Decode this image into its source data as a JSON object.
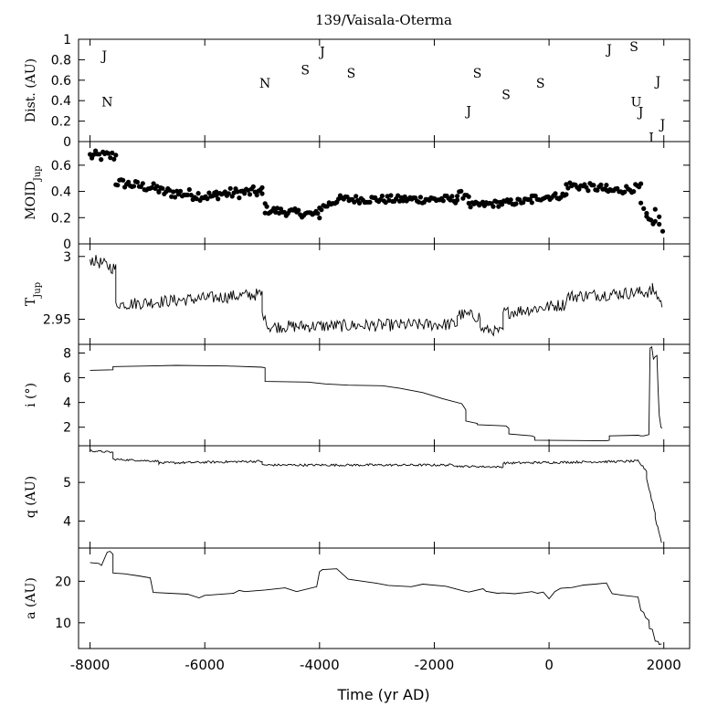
{
  "chart_data": {
    "type": "line",
    "title": "139/Vaisala-Oterma",
    "xlabel": "Time (yr AD)",
    "xlim": [
      -8200,
      2450
    ],
    "x_ticks": [
      -8000,
      -6000,
      -4000,
      -2000,
      0,
      2000
    ],
    "x_tick_labels": [
      "-8000",
      "-6000",
      "-4000",
      "-2000",
      "0",
      "2000"
    ],
    "panels": [
      {
        "id": "dist",
        "ylabel_main": "Dist. (AU)",
        "ylabel_sub": "",
        "ylim": [
          0,
          1
        ],
        "y_ticks": [
          0,
          0.2,
          0.4,
          0.6,
          0.8,
          1
        ],
        "y_tick_labels": [
          "0",
          "0.2",
          "0.4",
          "0.6",
          "0.8",
          "1"
        ],
        "annotations": [
          {
            "text": "J",
            "x": -7750,
            "y": 0.84
          },
          {
            "text": "N",
            "x": -7700,
            "y": 0.39
          },
          {
            "text": "N",
            "x": -4950,
            "y": 0.57
          },
          {
            "text": "S",
            "x": -4250,
            "y": 0.7
          },
          {
            "text": "J",
            "x": -3950,
            "y": 0.88
          },
          {
            "text": "S",
            "x": -3450,
            "y": 0.67
          },
          {
            "text": "J",
            "x": -1400,
            "y": 0.3
          },
          {
            "text": "S",
            "x": -1250,
            "y": 0.67
          },
          {
            "text": "S",
            "x": -750,
            "y": 0.46
          },
          {
            "text": "S",
            "x": -150,
            "y": 0.57
          },
          {
            "text": "J",
            "x": 1050,
            "y": 0.9
          },
          {
            "text": "S",
            "x": 1480,
            "y": 0.93
          },
          {
            "text": "U",
            "x": 1520,
            "y": 0.39
          },
          {
            "text": "J",
            "x": 1600,
            "y": 0.29
          },
          {
            "text": "J",
            "x": 1780,
            "y": 0.04
          },
          {
            "text": "J",
            "x": 1980,
            "y": 0.17
          },
          {
            "text": "J",
            "x": 1900,
            "y": 0.59
          }
        ]
      },
      {
        "id": "moid",
        "ylabel_main": "MOID",
        "ylabel_sub": "Jup",
        "ylim": [
          0,
          0.78
        ],
        "y_ticks": [
          0,
          0.2,
          0.4,
          0.6
        ],
        "y_tick_labels": [
          "0",
          "0.2",
          "0.4",
          "0.6"
        ],
        "marker": "dot",
        "segments": [
          {
            "x": [
              -8000,
              -7550
            ],
            "y": [
              0.67,
              0.67
            ],
            "noise": 0.04
          },
          {
            "x": [
              -7550,
              -6800
            ],
            "y": [
              0.47,
              0.42
            ],
            "noise": 0.035
          },
          {
            "x": [
              -6800,
              -5800
            ],
            "y": [
              0.4,
              0.36
            ],
            "noise": 0.04
          },
          {
            "x": [
              -5800,
              -5000
            ],
            "y": [
              0.38,
              0.4
            ],
            "noise": 0.04
          },
          {
            "x": [
              -5000,
              -4950
            ],
            "y": [
              0.38,
              0.3
            ],
            "noise": 0.02
          },
          {
            "x": [
              -4950,
              -4000
            ],
            "y": [
              0.26,
              0.22
            ],
            "noise": 0.03
          },
          {
            "x": [
              -4000,
              -3700
            ],
            "y": [
              0.27,
              0.33
            ],
            "noise": 0.03
          },
          {
            "x": [
              -3700,
              -1600
            ],
            "y": [
              0.34,
              0.34
            ],
            "noise": 0.03
          },
          {
            "x": [
              -1600,
              -1400
            ],
            "y": [
              0.37,
              0.38
            ],
            "noise": 0.03
          },
          {
            "x": [
              -1400,
              -300
            ],
            "y": [
              0.29,
              0.33
            ],
            "noise": 0.025
          },
          {
            "x": [
              -300,
              300
            ],
            "y": [
              0.35,
              0.37
            ],
            "noise": 0.025
          },
          {
            "x": [
              300,
              1000
            ],
            "y": [
              0.45,
              0.42
            ],
            "noise": 0.03
          },
          {
            "x": [
              1000,
              1600
            ],
            "y": [
              0.4,
              0.43
            ],
            "noise": 0.03
          },
          {
            "x": [
              1600,
              1700
            ],
            "y": [
              0.3,
              0.22
            ],
            "noise": 0.02
          },
          {
            "x": [
              1700,
              1850
            ],
            "y": [
              0.19,
              0.16
            ],
            "noise": 0.02
          },
          {
            "x": [
              1850,
              1920
            ],
            "y": [
              0.27,
              0.2
            ],
            "noise": 0.02
          },
          {
            "x": [
              1920,
              1980
            ],
            "y": [
              0.15,
              0.08
            ],
            "noise": 0.02
          }
        ]
      },
      {
        "id": "tjup",
        "ylabel_main": "T",
        "ylabel_sub": "Jup",
        "ylim": [
          2.93,
          3.01
        ],
        "y_ticks": [
          2.95,
          3
        ],
        "y_tick_labels": [
          "2.95",
          "3"
        ],
        "marker": "line",
        "segments": [
          {
            "x": [
              -8000,
              -7550
            ],
            "y": [
              2.998,
              2.99
            ],
            "noise": 0.005
          },
          {
            "x": [
              -7550,
              -7400
            ],
            "y": [
              2.962,
              2.962
            ],
            "noise": 0.004
          },
          {
            "x": [
              -7400,
              -5000
            ],
            "y": [
              2.962,
              2.97
            ],
            "noise": 0.005
          },
          {
            "x": [
              -5000,
              -4900
            ],
            "y": [
              2.955,
              2.945
            ],
            "noise": 0.003
          },
          {
            "x": [
              -4900,
              -1600
            ],
            "y": [
              2.944,
              2.946
            ],
            "noise": 0.005
          },
          {
            "x": [
              -1600,
              -1200
            ],
            "y": [
              2.954,
              2.952
            ],
            "noise": 0.005
          },
          {
            "x": [
              -1200,
              -800
            ],
            "y": [
              2.942,
              2.94
            ],
            "noise": 0.004
          },
          {
            "x": [
              -800,
              300
            ],
            "y": [
              2.955,
              2.962
            ],
            "noise": 0.005
          },
          {
            "x": [
              300,
              1800
            ],
            "y": [
              2.968,
              2.972
            ],
            "noise": 0.005
          },
          {
            "x": [
              1800,
              1970
            ],
            "y": [
              2.975,
              2.962
            ],
            "noise": 0.004
          }
        ]
      },
      {
        "id": "incl",
        "ylabel_main": "i (°)",
        "ylabel_sub": "",
        "ylim": [
          0.5,
          8.7
        ],
        "y_ticks": [
          2,
          4,
          6,
          8
        ],
        "y_tick_labels": [
          "2",
          "4",
          "6",
          "8"
        ],
        "marker": "line",
        "points": {
          "x": [
            -8000,
            -7600,
            -7600,
            -7000,
            -6500,
            -5600,
            -5000,
            -4950,
            -4950,
            -4200,
            -3900,
            -3500,
            -2900,
            -2600,
            -2200,
            -1850,
            -1520,
            -1450,
            -1450,
            -1250,
            -1250,
            -750,
            -700,
            -700,
            -300,
            -250,
            -250,
            1000,
            1050,
            1050,
            1550,
            1600,
            1650,
            1740,
            1760,
            1790,
            1820,
            1850,
            1880,
            1900,
            1920,
            1950,
            1970
          ],
          "y": [
            6.6,
            6.65,
            6.9,
            6.95,
            7.0,
            6.95,
            6.85,
            6.8,
            5.7,
            5.65,
            5.5,
            5.4,
            5.35,
            5.15,
            4.8,
            4.3,
            3.9,
            3.4,
            2.5,
            2.3,
            2.2,
            2.1,
            1.9,
            1.45,
            1.3,
            1.2,
            0.95,
            0.9,
            0.95,
            1.3,
            1.35,
            1.3,
            1.3,
            1.4,
            8.4,
            8.5,
            7.5,
            7.7,
            7.8,
            5.0,
            3.0,
            2.0,
            1.9
          ]
        }
      },
      {
        "id": "q",
        "ylabel_main": "q (AU)",
        "ylabel_sub": "",
        "ylim": [
          3.3,
          5.95
        ],
        "y_ticks": [
          4,
          5
        ],
        "y_tick_labels": [
          "4",
          "5"
        ],
        "marker": "line",
        "segments": [
          {
            "x": [
              -8000,
              -7600
            ],
            "y": [
              5.82,
              5.78
            ],
            "noise": 0.025
          },
          {
            "x": [
              -7600,
              -6800
            ],
            "y": [
              5.6,
              5.55
            ],
            "noise": 0.025
          },
          {
            "x": [
              -6800,
              -5000
            ],
            "y": [
              5.5,
              5.55
            ],
            "noise": 0.03
          },
          {
            "x": [
              -5000,
              -1600
            ],
            "y": [
              5.45,
              5.45
            ],
            "noise": 0.03
          },
          {
            "x": [
              -1600,
              -800
            ],
            "y": [
              5.42,
              5.4
            ],
            "noise": 0.025
          },
          {
            "x": [
              -800,
              1550
            ],
            "y": [
              5.5,
              5.55
            ],
            "noise": 0.03
          },
          {
            "x": [
              1550,
              1700
            ],
            "y": [
              5.55,
              5.3
            ],
            "noise": 0.03
          },
          {
            "x": [
              1700,
              1850
            ],
            "y": [
              5.1,
              4.2
            ],
            "noise": 0.06
          },
          {
            "x": [
              1850,
              1960
            ],
            "y": [
              4.1,
              3.45
            ],
            "noise": 0.06
          }
        ]
      },
      {
        "id": "a",
        "ylabel_main": "a (AU)",
        "ylabel_sub": "",
        "ylim": [
          3.8,
          28
        ],
        "y_ticks": [
          10,
          20
        ],
        "y_tick_labels": [
          "10",
          "20"
        ],
        "marker": "line",
        "points": {
          "x": [
            -8000,
            -7850,
            -7800,
            -7700,
            -7650,
            -7600,
            -7600,
            -7400,
            -7150,
            -6950,
            -6900,
            -6300,
            -6100,
            -6000,
            -5500,
            -5400,
            -5300,
            -4950,
            -4600,
            -4400,
            -4050,
            -4000,
            -3950,
            -3700,
            -3500,
            -3000,
            -2800,
            -2400,
            -2200,
            -1800,
            -1500,
            -1400,
            -1150,
            -1100,
            -900,
            -800,
            -600,
            -400,
            -300,
            -200,
            -100,
            0,
            100,
            200,
            400,
            600,
            800,
            1000,
            1050,
            1100,
            1300,
            1550,
            1600,
            1650,
            1680,
            1740,
            1750,
            1800,
            1850,
            1900,
            1920,
            1960
          ],
          "y": [
            24.5,
            24.3,
            23.8,
            27.0,
            27.2,
            26.5,
            22.0,
            21.8,
            21.3,
            20.8,
            17.3,
            16.9,
            16.0,
            16.6,
            17.1,
            17.8,
            17.5,
            17.9,
            18.4,
            17.5,
            18.7,
            22.3,
            22.8,
            23.0,
            20.5,
            19.5,
            19.0,
            18.7,
            19.3,
            18.8,
            17.7,
            17.4,
            18.2,
            17.6,
            17.1,
            17.2,
            17.0,
            17.3,
            17.5,
            17.1,
            17.4,
            15.8,
            17.5,
            18.3,
            18.5,
            19.1,
            19.3,
            19.6,
            18.2,
            17.0,
            16.6,
            16.2,
            13.0,
            12.5,
            11.3,
            10.6,
            8.6,
            8.4,
            5.6,
            5.5,
            4.8,
            4.9
          ]
        }
      }
    ]
  }
}
